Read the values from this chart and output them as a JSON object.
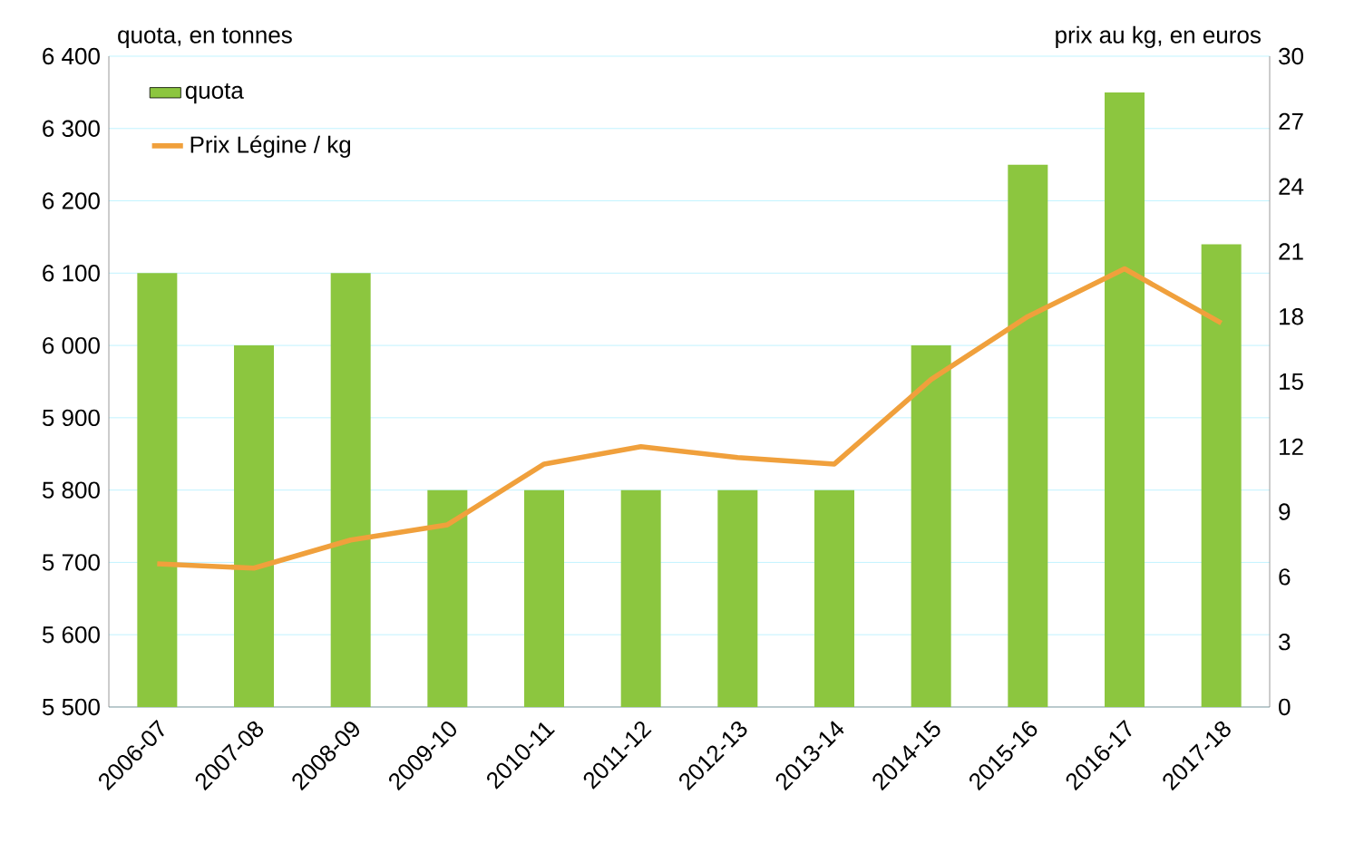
{
  "chart_data": {
    "type": "bar",
    "ylabel": "quota, en tonnes",
    "y2label": "prix au kg, en euros",
    "categories": [
      "2006-07",
      "2007-08",
      "2008-09",
      "2009-10",
      "2010-11",
      "2011-12",
      "2012-13",
      "2013-14",
      "2014-15",
      "2015-16",
      "2016-17",
      "2017-18"
    ],
    "series": [
      {
        "name": "quota",
        "color": "#8cc63f",
        "values": [
          6100,
          6000,
          6100,
          5800,
          5800,
          5800,
          5800,
          5800,
          6000,
          6250,
          6350,
          6140
        ]
      },
      {
        "name": "Prix Légine / kg",
        "type": "line",
        "axis": "y2",
        "color": "#f0a03c",
        "values": [
          6.6,
          6.4,
          7.7,
          8.4,
          11.2,
          12.0,
          11.5,
          11.2,
          15.1,
          18.0,
          20.2,
          17.7
        ]
      }
    ],
    "ylim": [
      5500,
      6400
    ],
    "yticks": [
      {
        "value": 5500,
        "label": "5 500"
      },
      {
        "value": 5600,
        "label": "5 600"
      },
      {
        "value": 5700,
        "label": "5 700"
      },
      {
        "value": 5800,
        "label": "5 800"
      },
      {
        "value": 5900,
        "label": "5 900"
      },
      {
        "value": 6000,
        "label": "6 000"
      },
      {
        "value": 6100,
        "label": "6 100"
      },
      {
        "value": 6200,
        "label": "6 200"
      },
      {
        "value": 6300,
        "label": "6 300"
      },
      {
        "value": 6400,
        "label": "6 400"
      }
    ],
    "y2lim": [
      0,
      30
    ],
    "y2ticks": [
      0,
      3,
      6,
      9,
      12,
      15,
      18,
      21,
      24,
      27,
      30
    ],
    "grid": "y",
    "legend": "top left"
  }
}
